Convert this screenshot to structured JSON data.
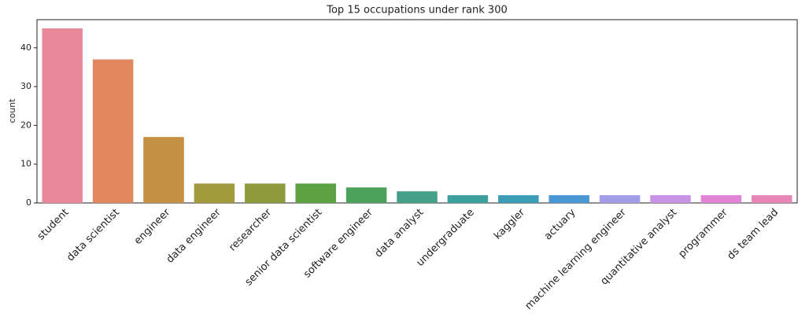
{
  "chart_data": {
    "type": "bar",
    "title": "Top 15 occupations under rank 300",
    "y_label": "count",
    "categories": [
      "student",
      "data scientist",
      "engineer",
      "data engineer",
      "researcher",
      "senior data scientist",
      "software engineer",
      "data analyst",
      "undergraduate",
      "kaggler",
      "actuary",
      "machine learning engineer",
      "quantitative analyst",
      "programmer",
      "ds team lead"
    ],
    "values": [
      45,
      37,
      17,
      5,
      5,
      5,
      4,
      3,
      2,
      2,
      2,
      2,
      2,
      2,
      2
    ],
    "colors": [
      "#e8889a",
      "#e0875f",
      "#c28f44",
      "#a39a3e",
      "#8e9a3c",
      "#5ba042",
      "#4ca25c",
      "#45a087",
      "#3ea09e",
      "#3c9eb6",
      "#4a97d6",
      "#a39ce8",
      "#c793e6",
      "#e083d3",
      "#e685b6"
    ],
    "ylim": [
      0,
      47.25
    ],
    "yticks": [
      0,
      10,
      20,
      30,
      40
    ],
    "grid": false
  }
}
